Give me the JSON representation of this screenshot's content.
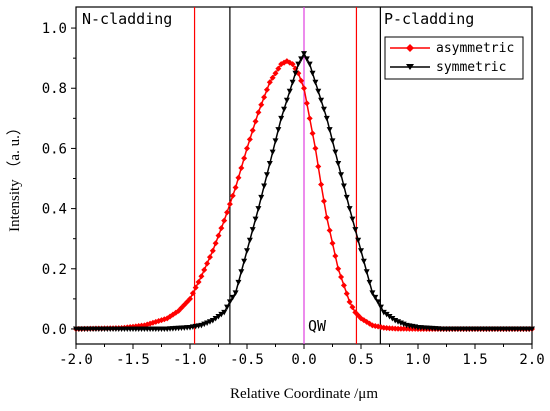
{
  "chart_data": {
    "type": "line",
    "title": "",
    "xlabel": "Relative Coordinate /μm",
    "ylabel": "Intensity （a. u.）",
    "xlim": [
      -2.0,
      2.0
    ],
    "ylim": [
      -0.05,
      1.07
    ],
    "x_ticks": [
      "-2.0",
      "-1.5",
      "-1.0",
      "-0.5",
      "0.0",
      "0.5",
      "1.0",
      "1.5",
      "2.0"
    ],
    "y_ticks": [
      "0.0",
      "0.2",
      "0.4",
      "0.6",
      "0.8",
      "1.0"
    ],
    "legend_position": "top-right",
    "grid": false,
    "series": [
      {
        "name": "asymmetric",
        "color": "#ff0000",
        "marker": "diamond",
        "x": [
          -2.0,
          -1.6,
          -1.4,
          -1.2,
          -1.1,
          -1.0,
          -0.9,
          -0.8,
          -0.7,
          -0.6,
          -0.5,
          -0.4,
          -0.3,
          -0.2,
          -0.15,
          -0.1,
          -0.05,
          0.0,
          0.05,
          0.1,
          0.15,
          0.2,
          0.3,
          0.4,
          0.45,
          0.5,
          0.6,
          0.7,
          0.8,
          1.0,
          1.5,
          2.0
        ],
        "y": [
          0.0,
          0.003,
          0.012,
          0.035,
          0.06,
          0.1,
          0.175,
          0.26,
          0.36,
          0.47,
          0.6,
          0.72,
          0.82,
          0.88,
          0.89,
          0.88,
          0.85,
          0.8,
          0.7,
          0.6,
          0.48,
          0.37,
          0.2,
          0.09,
          0.055,
          0.035,
          0.012,
          0.004,
          0.001,
          0.0,
          0.0,
          0.0
        ]
      },
      {
        "name": "symmetric",
        "color": "#000000",
        "marker": "triangle-down",
        "x": [
          -2.0,
          -1.2,
          -1.0,
          -0.9,
          -0.8,
          -0.7,
          -0.65,
          -0.6,
          -0.5,
          -0.4,
          -0.3,
          -0.2,
          -0.1,
          -0.05,
          0.0,
          0.05,
          0.1,
          0.2,
          0.3,
          0.4,
          0.5,
          0.6,
          0.65,
          0.7,
          0.8,
          0.9,
          1.0,
          1.2,
          2.0
        ],
        "y": [
          0.0,
          0.0,
          0.005,
          0.012,
          0.028,
          0.055,
          0.09,
          0.12,
          0.26,
          0.4,
          0.55,
          0.7,
          0.82,
          0.88,
          0.915,
          0.88,
          0.82,
          0.7,
          0.55,
          0.4,
          0.26,
          0.12,
          0.09,
          0.055,
          0.028,
          0.012,
          0.005,
          0.0,
          0.0
        ]
      }
    ],
    "vertical_lines": [
      {
        "x": -0.96,
        "color": "#ff0000"
      },
      {
        "x": -0.65,
        "color": "#000000"
      },
      {
        "x": 0.0,
        "color": "#e040e0"
      },
      {
        "x": 0.46,
        "color": "#ff0000"
      },
      {
        "x": 0.67,
        "color": "#000000"
      }
    ],
    "annotations": [
      "N-cladding",
      "P-cladding",
      "QW"
    ]
  }
}
